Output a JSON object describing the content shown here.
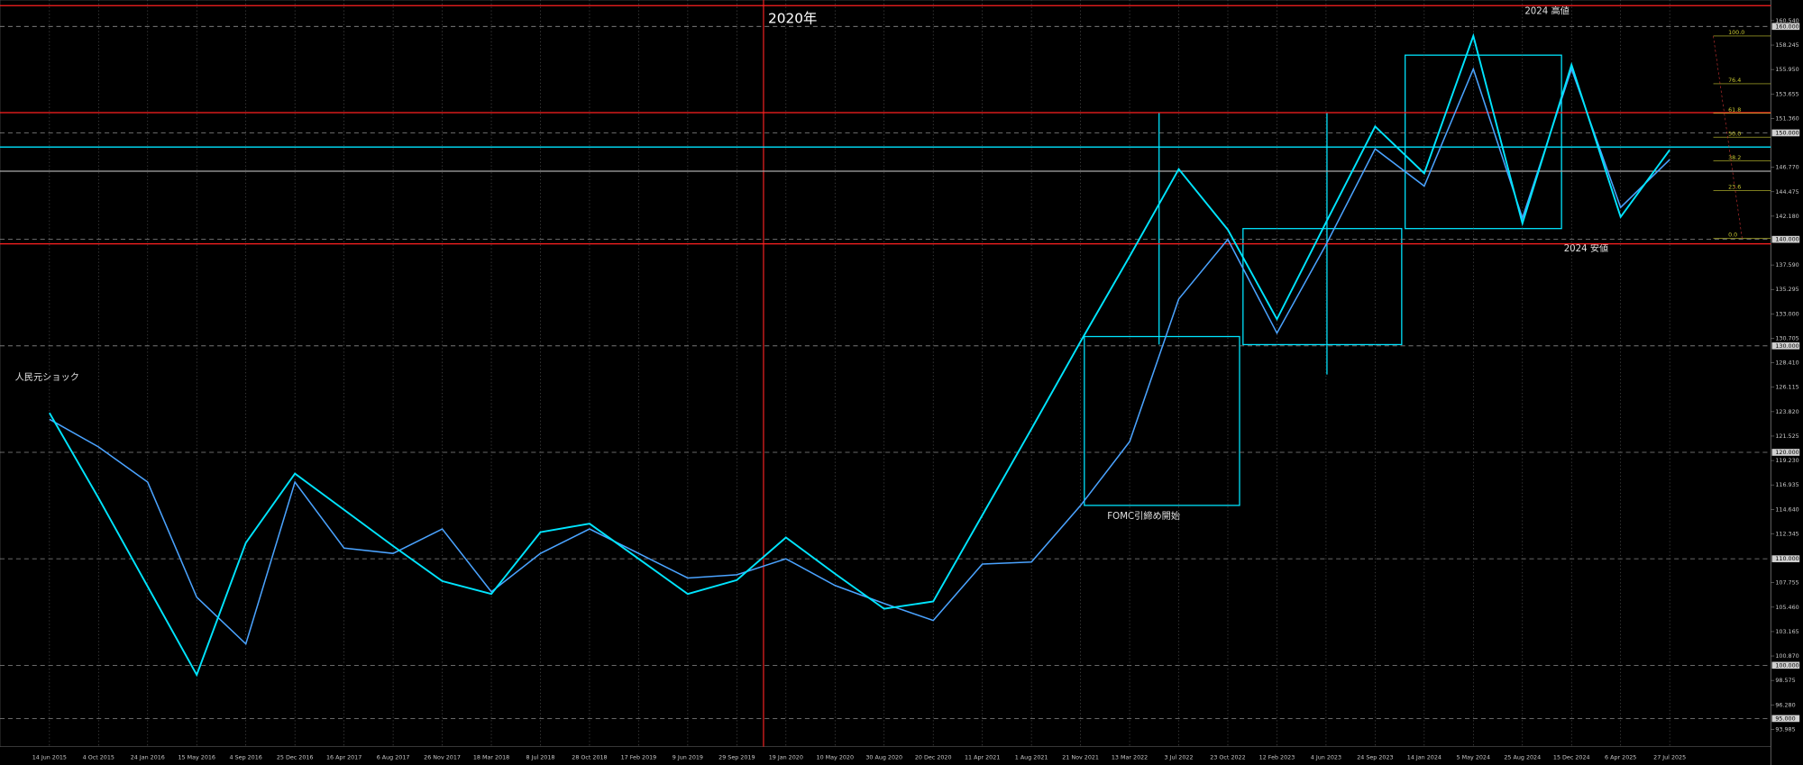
{
  "chart_data": {
    "type": "line",
    "categories": [
      "14 Jun 2015",
      "4 Oct 2015",
      "24 Jan 2016",
      "15 May 2016",
      "4 Sep 2016",
      "25 Dec 2016",
      "16 Apr 2017",
      "6 Aug 2017",
      "26 Nov 2017",
      "18 Mar 2018",
      "8 Jul 2018",
      "28 Oct 2018",
      "17 Feb 2019",
      "9 Jun 2019",
      "29 Sep 2019",
      "19 Jan 2020",
      "10 May 2020",
      "30 Aug 2020",
      "20 Dec 2020",
      "11 Apr 2021",
      "1 Aug 2021",
      "21 Nov 2021",
      "13 Mar 2022",
      "3 Jul 2022",
      "23 Oct 2022",
      "12 Feb 2023",
      "4 Jun 2023",
      "24 Sep 2023",
      "14 Jan 2024",
      "5 May 2024",
      "25 Aug 2024",
      "15 Dec 2024",
      "6 Apr 2025",
      "27 Jul 2025"
    ],
    "series": [
      {
        "color": "#4aa3ff",
        "values": [
          123.1,
          120.5,
          117.2,
          106.4,
          102.0,
          117.2,
          111.0,
          110.5,
          112.8,
          106.9,
          110.5,
          112.8,
          110.5,
          108.2,
          108.5,
          110.0,
          107.5,
          105.8,
          104.2,
          109.5,
          109.7,
          115.0,
          121.0,
          134.4,
          140.0,
          131.2,
          139.5,
          148.5,
          145.0,
          156.0,
          142.0,
          156.0,
          143.0,
          147.5
        ]
      },
      {
        "color": "#00e5ff",
        "values": [
          123.7,
          115.7,
          107.4,
          99.1,
          111.5,
          118.0,
          114.6,
          111.2,
          107.9,
          106.7,
          112.5,
          113.3,
          110.0,
          106.7,
          108.0,
          112.0,
          108.6,
          105.3,
          106.0,
          114.1,
          122.2,
          130.4,
          138.4,
          146.6,
          140.9,
          132.5,
          141.6,
          150.6,
          146.2,
          159.1,
          141.5,
          156.4,
          142.1,
          148.4
        ]
      }
    ],
    "ylim": [
      92.36,
      162.48
    ],
    "yticks": [
      {
        "value": 160.54,
        "label": "160.540"
      },
      {
        "value": 158.245,
        "label": "158.245"
      },
      {
        "value": 155.95,
        "label": "155.950"
      },
      {
        "value": 153.655,
        "label": "153.655"
      },
      {
        "value": 151.36,
        "label": "151.360"
      },
      {
        "value": 146.77,
        "label": "146.770"
      },
      {
        "value": 144.475,
        "label": "144.475"
      },
      {
        "value": 142.18,
        "label": "142.180"
      },
      {
        "value": 137.59,
        "label": "137.590"
      },
      {
        "value": 135.295,
        "label": "135.295"
      },
      {
        "value": 133,
        "label": "133.000"
      },
      {
        "value": 130.705,
        "label": "130.705"
      },
      {
        "value": 128.41,
        "label": "128.410"
      },
      {
        "value": 126.115,
        "label": "126.115"
      },
      {
        "value": 123.82,
        "label": "123.820"
      },
      {
        "value": 121.525,
        "label": "121.525"
      },
      {
        "value": 119.23,
        "label": "119.230"
      },
      {
        "value": 116.935,
        "label": "116.935"
      },
      {
        "value": 114.64,
        "label": "114.640"
      },
      {
        "value": 112.345,
        "label": "112.345"
      },
      {
        "value": 107.755,
        "label": "107.755"
      },
      {
        "value": 105.46,
        "label": "105.460"
      },
      {
        "value": 103.165,
        "label": "103.165"
      },
      {
        "value": 100.87,
        "label": "100.870"
      },
      {
        "value": 98.575,
        "label": "98.575"
      },
      {
        "value": 96.28,
        "label": "96.280"
      },
      {
        "value": 93.985,
        "label": "93.985"
      }
    ],
    "hlines": [
      {
        "value": 160,
        "label": "160.000"
      },
      {
        "value": 150,
        "label": "150.000"
      },
      {
        "value": 140,
        "label": "140.000"
      },
      {
        "value": 130,
        "label": "130.000"
      },
      {
        "value": 120,
        "label": "120.000"
      },
      {
        "value": 110,
        "label": "110.000"
      },
      {
        "value": 100,
        "label": "100.000"
      },
      {
        "value": 95,
        "label": "95.000"
      }
    ],
    "levels": [
      {
        "value": 161.95,
        "color": "#ff2020"
      },
      {
        "value": 151.9,
        "color": "#ff2020"
      },
      {
        "value": 139.58,
        "color": "#ff2020"
      },
      {
        "value": 148.67,
        "color": "#00e5ff"
      },
      {
        "value": 146.4,
        "color": "#aaaaaa"
      }
    ],
    "fibonacci": {
      "levels": [
        100,
        76.4,
        61.8,
        50,
        38.2,
        23.6,
        0
      ],
      "labels": [
        "100.0",
        "76.4",
        "61.8",
        "50.0",
        "38.2",
        "23.6",
        "0.0"
      ],
      "high": 159.1,
      "low": 140.1,
      "color": "#c8c832"
    },
    "annotations": [
      "2020年",
      "2024 高値",
      "2024 安値",
      "人民元ショック",
      "FOMC引締め開始"
    ],
    "grid": true
  }
}
